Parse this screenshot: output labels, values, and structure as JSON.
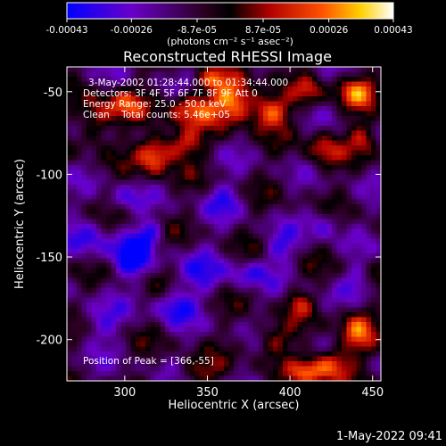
{
  "chart_data": {
    "type": "heatmap",
    "title": "Reconstructed RHESSI Image",
    "xlabel": "Heliocentric X (arcsec)",
    "ylabel": "Heliocentric Y (arcsec)",
    "xlim": [
      265,
      455
    ],
    "ylim": [
      -225,
      -35
    ],
    "x_ticks": [
      300,
      350,
      400,
      450
    ],
    "y_ticks": [
      -50,
      -100,
      -150,
      -200
    ],
    "colorbar": {
      "range": [
        -0.00043,
        0.00043
      ],
      "tick_values": [
        -0.00043,
        -0.00026,
        -8.7e-05,
        8.7e-05,
        0.00026,
        0.00043
      ],
      "tick_labels": [
        "-0.00043",
        "-0.00026",
        "-8.7e-05",
        "8.7e-05",
        "0.00026",
        "0.00043"
      ],
      "unit_label": "(photons cm⁻² s⁻¹ asec⁻²)",
      "colors": [
        "#0000ff",
        "#6a00c8",
        "#2a0020",
        "#000000",
        "#b00000",
        "#ff5000",
        "#ffd000",
        "#ffffff"
      ]
    },
    "annotations": [
      "3-May-2002 01:28:44.000 to 01:34:44.000",
      "Detectors: 3F 4F 5F 6F 7F 8F 9F Att 0",
      "Energy Range: 25.0 - 50.0 keV",
      "Clean    Total counts: 5.46e+05"
    ],
    "peak_label": "Position of Peak = [366,-55]",
    "peak_position": [
      366,
      -55
    ],
    "value_range": [
      -0.00043,
      0.00043
    ]
  },
  "footer": {
    "timestamp": "1-May-2022 09:41"
  }
}
